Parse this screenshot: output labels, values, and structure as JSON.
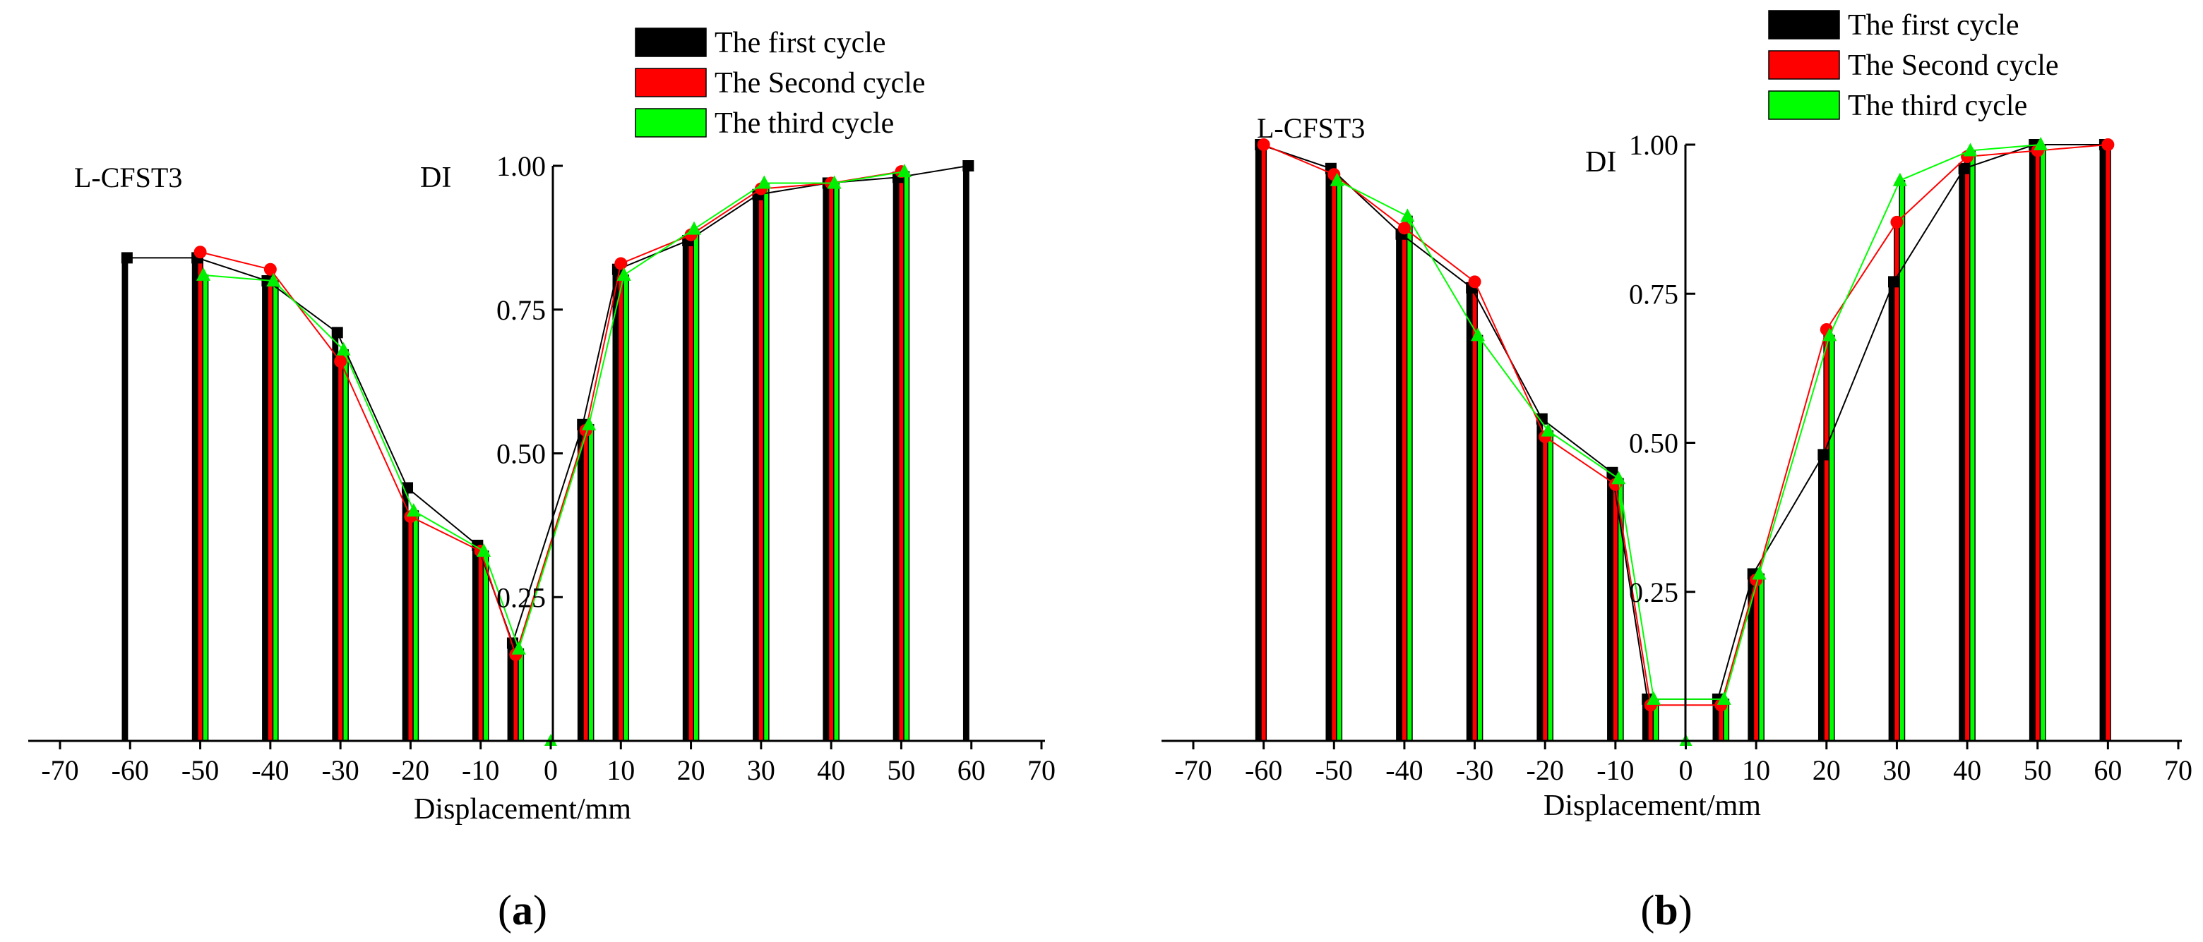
{
  "chart_data": [
    {
      "type": "bar",
      "caption": "(a)",
      "panel_label": "L-CFST3",
      "xlabel": "Displacement/mm",
      "ylabel": "DI",
      "xlim": [
        -70,
        70
      ],
      "ylim": [
        0,
        1.0
      ],
      "xticks": [
        -70,
        -60,
        -50,
        -40,
        -30,
        -20,
        -10,
        0,
        10,
        20,
        30,
        40,
        50,
        60,
        70
      ],
      "yticks": [
        0.25,
        0.5,
        0.75,
        1.0
      ],
      "ytick_labels": [
        "0.25",
        "0.50",
        "0.75",
        "1.00"
      ],
      "legend_position": "top-center",
      "categories": [
        -60,
        -50,
        -40,
        -30,
        -20,
        -10,
        -5,
        5,
        10,
        20,
        30,
        40,
        50,
        60
      ],
      "series": [
        {
          "name": "The first cycle",
          "color": "#000000",
          "marker": "square",
          "values": [
            0.84,
            0.84,
            0.8,
            0.71,
            0.44,
            0.34,
            0.17,
            0.55,
            0.82,
            0.87,
            0.95,
            0.97,
            0.98,
            1.0
          ]
        },
        {
          "name": "The Second cycle",
          "color": "#ff0000",
          "marker": "circle",
          "values": [
            null,
            0.85,
            0.82,
            0.66,
            0.39,
            0.33,
            0.15,
            0.54,
            0.83,
            0.88,
            0.96,
            0.97,
            0.99,
            null
          ]
        },
        {
          "name": "The third cycle",
          "color": "#00ff00",
          "marker": "triangle",
          "values": [
            null,
            0.81,
            0.8,
            0.68,
            0.4,
            0.33,
            0.16,
            0.55,
            0.81,
            0.89,
            0.97,
            0.97,
            0.99,
            null
          ]
        }
      ]
    },
    {
      "type": "bar",
      "caption": "(b)",
      "panel_label": "L-CFST3",
      "xlabel": "Displacement/mm",
      "ylabel": "DI",
      "xlim": [
        -70,
        70
      ],
      "ylim": [
        0,
        1.0
      ],
      "xticks": [
        -70,
        -60,
        -50,
        -40,
        -30,
        -20,
        -10,
        0,
        10,
        20,
        30,
        40,
        50,
        60,
        70
      ],
      "yticks": [
        0.25,
        0.5,
        0.75,
        1.0
      ],
      "ytick_labels": [
        "0.25",
        "0.50",
        "0.75",
        "1.00"
      ],
      "legend_position": "top-center",
      "categories": [
        -60,
        -50,
        -40,
        -30,
        -20,
        -10,
        -5,
        5,
        10,
        20,
        30,
        40,
        50,
        60
      ],
      "series": [
        {
          "name": "The first cycle",
          "color": "#000000",
          "marker": "square",
          "values": [
            1.0,
            0.96,
            0.85,
            0.76,
            0.54,
            0.45,
            0.07,
            0.07,
            0.28,
            0.48,
            0.77,
            0.96,
            1.0,
            1.0
          ]
        },
        {
          "name": "The Second cycle",
          "color": "#ff0000",
          "marker": "circle",
          "values": [
            1.0,
            0.95,
            0.86,
            0.77,
            0.51,
            0.43,
            0.06,
            0.06,
            0.27,
            0.69,
            0.87,
            0.98,
            0.99,
            1.0
          ]
        },
        {
          "name": "The third cycle",
          "color": "#00ff00",
          "marker": "triangle",
          "values": [
            null,
            0.94,
            0.88,
            0.68,
            0.52,
            0.44,
            0.07,
            0.07,
            0.28,
            0.68,
            0.94,
            0.99,
            1.0,
            null
          ]
        }
      ]
    }
  ]
}
